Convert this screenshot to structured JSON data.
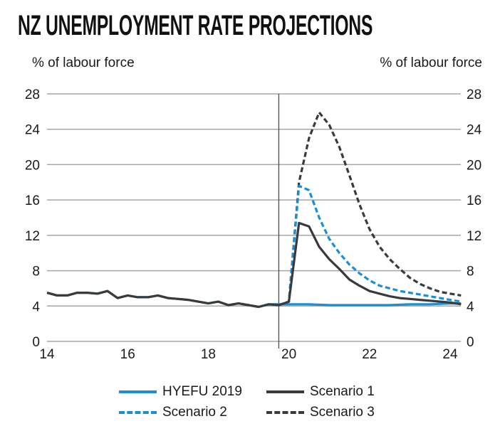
{
  "title": "NZ UNEMPLOYMENT RATE PROJECTIONS",
  "colors": {
    "hyefu": "#1a8fd6",
    "scenario1": "#3a3a3a",
    "scenario2": "#1a8fd6",
    "scenario3": "#3a3a3a",
    "grid": "#a6a6a6",
    "divider": "#4d4d4d"
  },
  "chart_data": {
    "type": "line",
    "title": "NZ UNEMPLOYMENT RATE PROJECTIONS",
    "ylabel_left": "% of labour force",
    "ylabel_right": "% of labour force",
    "xlabel": "",
    "xlim": [
      14,
      24.27
    ],
    "ylim": [
      0,
      28
    ],
    "grid": true,
    "x_ticks": [
      14,
      16,
      18,
      20,
      22,
      24
    ],
    "x_tick_labels": [
      "14",
      "16",
      "18",
      "20",
      "22",
      "24"
    ],
    "y_ticks": [
      0,
      4,
      8,
      12,
      16,
      20,
      24,
      28
    ],
    "y_tick_labels": [
      "0",
      "4",
      "8",
      "12",
      "16",
      "20",
      "24",
      "28"
    ],
    "divider_x": 19.75,
    "legend_position": "bottom",
    "series": [
      {
        "name": "HYEFU 2019",
        "style": "solid",
        "color": "#1a8fd6",
        "x": [
          14.0,
          14.25,
          14.5,
          14.75,
          15.0,
          15.25,
          15.5,
          15.75,
          16.0,
          16.25,
          16.5,
          16.75,
          17.0,
          17.25,
          17.5,
          17.75,
          18.0,
          18.25,
          18.5,
          18.75,
          19.0,
          19.25,
          19.5,
          19.75,
          20.0,
          20.5,
          21.0,
          21.5,
          22.0,
          22.5,
          23.0,
          23.5,
          24.0,
          24.27
        ],
        "y": [
          5.5,
          5.2,
          5.2,
          5.5,
          5.5,
          5.4,
          5.7,
          4.9,
          5.2,
          5.0,
          5.0,
          5.2,
          4.9,
          4.8,
          4.7,
          4.5,
          4.3,
          4.5,
          4.1,
          4.3,
          4.1,
          3.9,
          4.2,
          4.2,
          4.2,
          4.2,
          4.1,
          4.1,
          4.1,
          4.1,
          4.2,
          4.2,
          4.3,
          4.3
        ]
      },
      {
        "name": "Scenario 1",
        "style": "solid",
        "color": "#3a3a3a",
        "x": [
          14.0,
          14.25,
          14.5,
          14.75,
          15.0,
          15.25,
          15.5,
          15.75,
          16.0,
          16.25,
          16.5,
          16.75,
          17.0,
          17.25,
          17.5,
          17.75,
          18.0,
          18.25,
          18.5,
          18.75,
          19.0,
          19.25,
          19.5,
          19.75,
          20.0,
          20.25,
          20.5,
          20.75,
          21.0,
          21.25,
          21.5,
          21.75,
          22.0,
          22.25,
          22.5,
          22.75,
          23.0,
          23.25,
          23.5,
          23.75,
          24.0,
          24.27
        ],
        "y": [
          5.5,
          5.2,
          5.2,
          5.5,
          5.5,
          5.4,
          5.7,
          4.9,
          5.2,
          5.0,
          5.0,
          5.2,
          4.9,
          4.8,
          4.7,
          4.5,
          4.3,
          4.5,
          4.1,
          4.3,
          4.1,
          3.9,
          4.2,
          4.1,
          4.5,
          13.4,
          13.0,
          10.7,
          9.3,
          8.2,
          7.0,
          6.3,
          5.7,
          5.4,
          5.1,
          4.9,
          4.8,
          4.7,
          4.6,
          4.5,
          4.4,
          4.2
        ]
      },
      {
        "name": "Scenario 2",
        "style": "dashed",
        "color": "#1a8fd6",
        "x": [
          19.75,
          20.0,
          20.25,
          20.5,
          20.75,
          21.0,
          21.25,
          21.5,
          21.75,
          22.0,
          22.25,
          22.5,
          22.75,
          23.0,
          23.25,
          23.5,
          23.75,
          24.0,
          24.27
        ],
        "y": [
          4.1,
          4.5,
          17.6,
          17.1,
          14.0,
          11.6,
          10.0,
          8.7,
          7.7,
          6.9,
          6.3,
          6.0,
          5.7,
          5.5,
          5.3,
          5.1,
          4.9,
          4.7,
          4.5
        ]
      },
      {
        "name": "Scenario 3",
        "style": "dashed",
        "color": "#3a3a3a",
        "x": [
          19.75,
          20.0,
          20.25,
          20.5,
          20.75,
          21.0,
          21.25,
          21.5,
          21.75,
          22.0,
          22.25,
          22.5,
          22.75,
          23.0,
          23.25,
          23.5,
          23.75,
          24.0,
          24.27
        ],
        "y": [
          4.1,
          4.5,
          18.0,
          23.0,
          25.9,
          24.5,
          22.0,
          18.8,
          15.5,
          12.7,
          10.7,
          9.3,
          8.2,
          7.2,
          6.5,
          6.0,
          5.6,
          5.4,
          5.2
        ]
      }
    ]
  },
  "legend": [
    {
      "label": "HYEFU 2019",
      "style": "solid",
      "color": "#1a8fd6"
    },
    {
      "label": "Scenario 1",
      "style": "solid",
      "color": "#3a3a3a"
    },
    {
      "label": "Scenario 2",
      "style": "dashed",
      "color": "#1a8fd6"
    },
    {
      "label": "Scenario 3",
      "style": "dashed",
      "color": "#3a3a3a"
    }
  ]
}
